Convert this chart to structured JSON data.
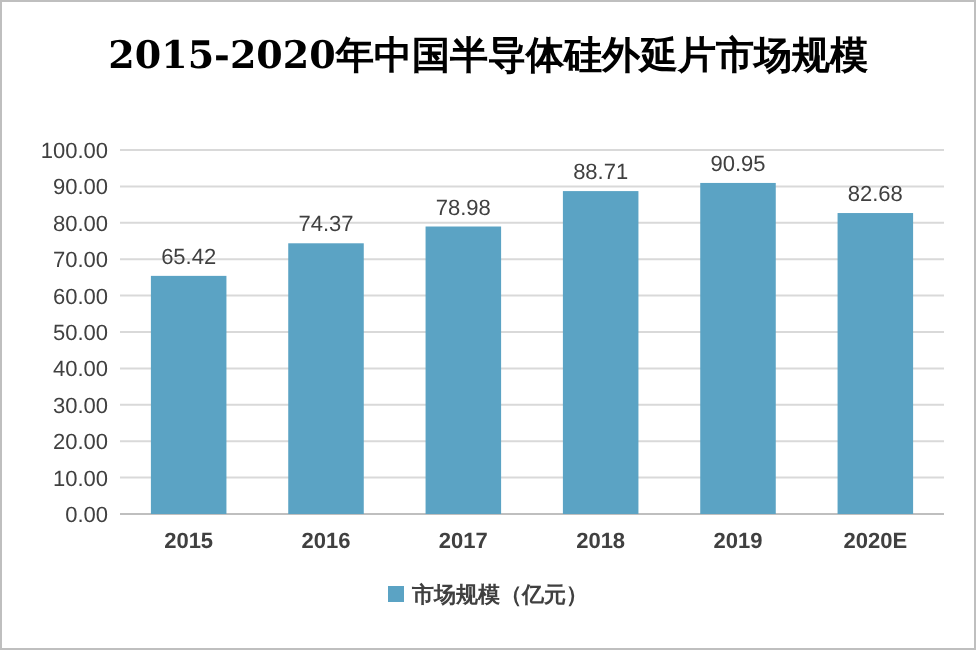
{
  "chart_data": {
    "type": "bar",
    "title": "2015-2020年中国半导体硅外延片市场规模",
    "categories": [
      "2015",
      "2016",
      "2017",
      "2018",
      "2019",
      "2020E"
    ],
    "series": [
      {
        "name": "市场规模（亿元）",
        "color": "#5ba3c4",
        "values": [
          65.42,
          74.37,
          78.98,
          88.71,
          90.95,
          82.68
        ]
      }
    ],
    "ylim": [
      0,
      100
    ],
    "yticks": [
      {
        "value": 0,
        "label": "0.00"
      },
      {
        "value": 10,
        "label": "10.00"
      },
      {
        "value": 20,
        "label": "20.00"
      },
      {
        "value": 30,
        "label": "30.00"
      },
      {
        "value": 40,
        "label": "40.00"
      },
      {
        "value": 50,
        "label": "50.00"
      },
      {
        "value": 60,
        "label": "60.00"
      },
      {
        "value": 70,
        "label": "70.00"
      },
      {
        "value": 80,
        "label": "80.00"
      },
      {
        "value": 90,
        "label": "90.00"
      },
      {
        "value": 100,
        "label": "100.00"
      }
    ],
    "grid": "y",
    "legend": "bottom",
    "data_labels": true
  }
}
